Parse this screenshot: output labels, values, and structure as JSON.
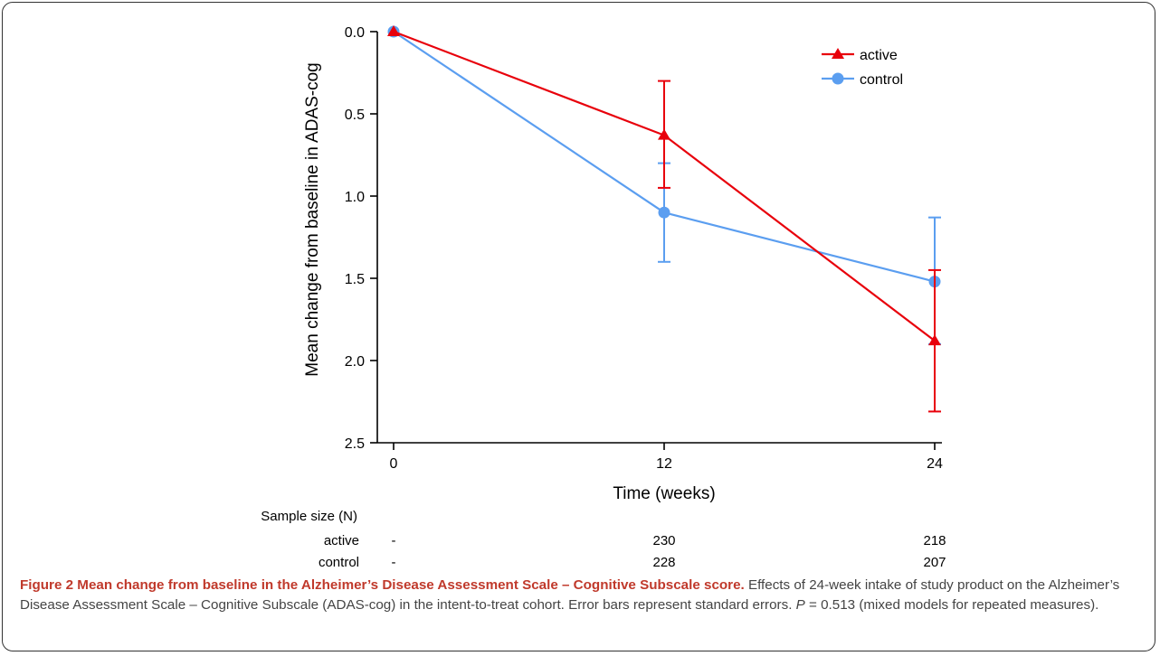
{
  "chart_data": {
    "type": "line",
    "x": [
      0,
      12,
      24
    ],
    "xlabel": "Time (weeks)",
    "ylabel": "Mean change from baseline in ADAS-cog",
    "x_ticks": [
      "0",
      "12",
      "24"
    ],
    "y_ticks": [
      "0.0",
      "0.5",
      "1.0",
      "1.5",
      "2.0",
      "2.5"
    ],
    "ylim": [
      0,
      2.5
    ],
    "y_inverted": true,
    "legend_position": "top-right",
    "series": [
      {
        "name": "active",
        "color": "#e8000b",
        "marker": "triangle",
        "values": [
          0,
          0.63,
          1.88
        ],
        "err_low": [
          0,
          0.3,
          1.45
        ],
        "err_high": [
          0,
          0.95,
          2.31
        ]
      },
      {
        "name": "control",
        "color": "#5b9ef0",
        "marker": "circle",
        "values": [
          0,
          1.1,
          1.52
        ],
        "err_low": [
          0,
          0.8,
          1.13
        ],
        "err_high": [
          0,
          1.4,
          1.9
        ]
      }
    ],
    "sample_size": {
      "title": "Sample size (N)",
      "rows": [
        {
          "label": "active",
          "values": [
            "-",
            "230",
            "218"
          ]
        },
        {
          "label": "control",
          "values": [
            "-",
            "228",
            "207"
          ]
        }
      ]
    }
  },
  "caption": {
    "title": "Figure 2 Mean change from baseline in the Alzheimer’s Disease Assessment Scale – Cognitive Subscale score.",
    "text_1": " Effects of 24-week intake of study product on the Alzheimer’s Disease Assessment Scale – Cognitive Subscale (ADAS-cog) in the intent-to-treat cohort. Error bars represent standard errors. ",
    "p_symbol": "P",
    "text_2": " = 0.513 (mixed models for repeated measures)."
  }
}
